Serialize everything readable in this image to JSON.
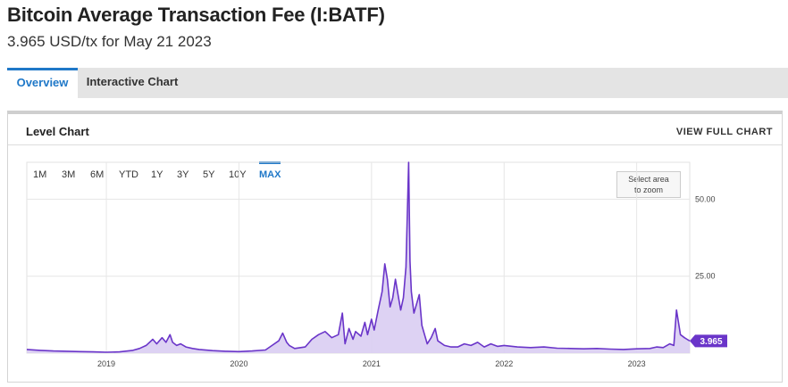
{
  "header": {
    "title": "Bitcoin Average Transaction Fee (I:BATF)",
    "subtitle": "3.965 USD/tx for May 21 2023"
  },
  "tabs": [
    {
      "label": "Overview",
      "active": true
    },
    {
      "label": "Interactive Chart",
      "active": false
    }
  ],
  "panel": {
    "title": "Level Chart",
    "full_chart_link": "VIEW FULL CHART"
  },
  "range_buttons": [
    {
      "label": "1M",
      "active": false
    },
    {
      "label": "3M",
      "active": false
    },
    {
      "label": "6M",
      "active": false
    },
    {
      "label": "YTD",
      "active": false
    },
    {
      "label": "1Y",
      "active": false
    },
    {
      "label": "3Y",
      "active": false
    },
    {
      "label": "5Y",
      "active": false
    },
    {
      "label": "10Y",
      "active": false
    },
    {
      "label": "MAX",
      "active": true
    }
  ],
  "zoom_hint": {
    "line1": "Select area",
    "line2": "to zoom"
  },
  "colors": {
    "accent": "#1f78c8",
    "series_line": "#6a35c9",
    "series_fill": "#d9cdf2",
    "last_value_badge": "#6a35c9"
  },
  "chart_data": {
    "type": "area",
    "title": "",
    "xlabel": "",
    "ylabel": "",
    "x_ticks": [
      "2019",
      "2020",
      "2021",
      "2022",
      "2023"
    ],
    "y_ticks": [
      "25.00",
      "50.00"
    ],
    "x_range": [
      2018.4,
      2023.4
    ],
    "ylim": [
      0,
      62
    ],
    "grid": true,
    "last_value_label": "3.965",
    "series": [
      {
        "x": [
          2018.4,
          2018.5,
          2018.6,
          2018.7,
          2018.8,
          2018.9,
          2019.0,
          2019.1,
          2019.2,
          2019.25,
          2019.3,
          2019.35,
          2019.38,
          2019.42,
          2019.45,
          2019.48,
          2019.5,
          2019.53,
          2019.56,
          2019.6,
          2019.65,
          2019.7,
          2019.8,
          2019.9,
          2020.0,
          2020.1,
          2020.2,
          2020.25,
          2020.3,
          2020.33,
          2020.36,
          2020.38,
          2020.42,
          2020.5,
          2020.55,
          2020.6,
          2020.65,
          2020.7,
          2020.75,
          2020.78,
          2020.8,
          2020.83,
          2020.86,
          2020.88,
          2020.92,
          2020.95,
          2020.97,
          2021.0,
          2021.02,
          2021.05,
          2021.08,
          2021.1,
          2021.12,
          2021.14,
          2021.16,
          2021.18,
          2021.2,
          2021.22,
          2021.24,
          2021.26,
          2021.28,
          2021.29,
          2021.3,
          2021.32,
          2021.34,
          2021.36,
          2021.38,
          2021.4,
          2021.42,
          2021.45,
          2021.48,
          2021.5,
          2021.55,
          2021.6,
          2021.65,
          2021.7,
          2021.75,
          2021.8,
          2021.85,
          2021.9,
          2021.95,
          2022.0,
          2022.1,
          2022.2,
          2022.3,
          2022.4,
          2022.5,
          2022.6,
          2022.7,
          2022.8,
          2022.9,
          2023.0,
          2023.1,
          2023.15,
          2023.2,
          2023.25,
          2023.28,
          2023.3,
          2023.33,
          2023.36,
          2023.38,
          2023.4
        ],
        "values": [
          1.2,
          0.9,
          0.7,
          0.6,
          0.5,
          0.4,
          0.3,
          0.4,
          0.9,
          1.5,
          2.5,
          4.5,
          3.0,
          5.0,
          3.5,
          6.0,
          3.5,
          2.5,
          3.0,
          2.0,
          1.5,
          1.2,
          0.8,
          0.6,
          0.5,
          0.7,
          1.0,
          2.5,
          4.0,
          6.5,
          3.5,
          2.5,
          1.5,
          2.0,
          4.5,
          6.0,
          7.0,
          5.0,
          6.0,
          13.0,
          3.0,
          8.0,
          4.5,
          7.0,
          5.5,
          10.0,
          6.0,
          11.0,
          7.5,
          14.0,
          20.0,
          29.0,
          24.0,
          15.0,
          18.0,
          24.0,
          19.0,
          14.0,
          18.0,
          28.0,
          62.0,
          30.0,
          20.0,
          13.0,
          16.0,
          19.0,
          9.0,
          6.0,
          3.0,
          5.0,
          8.0,
          4.0,
          2.5,
          2.0,
          2.0,
          3.0,
          2.5,
          3.5,
          2.0,
          3.0,
          2.2,
          2.5,
          2.0,
          1.8,
          2.0,
          1.6,
          1.5,
          1.4,
          1.5,
          1.3,
          1.2,
          1.4,
          1.5,
          2.0,
          1.8,
          3.0,
          2.5,
          14.0,
          6.0,
          5.0,
          4.5,
          3.965
        ]
      }
    ]
  }
}
